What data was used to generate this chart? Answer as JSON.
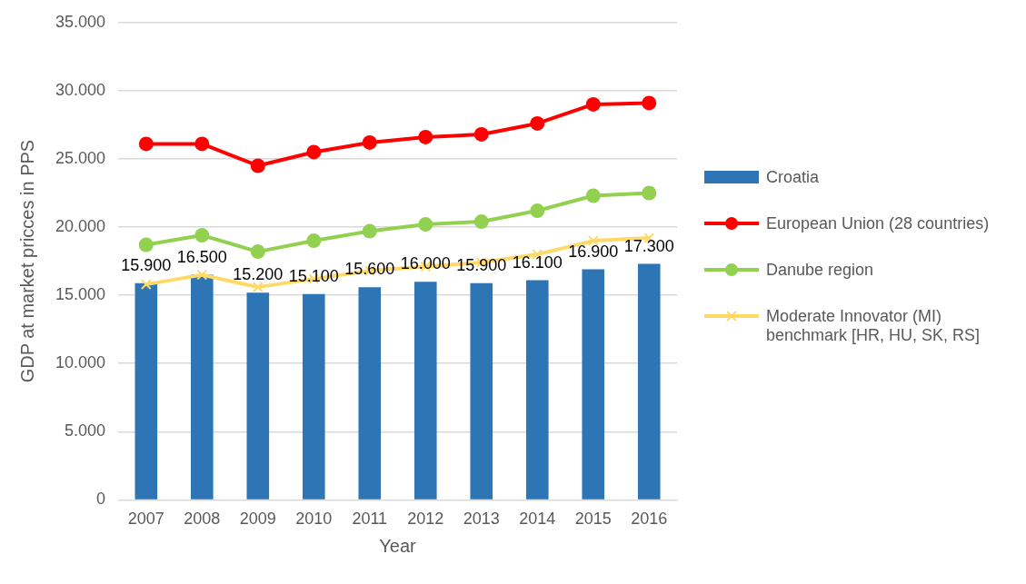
{
  "chart_data": {
    "type": "bar",
    "xlabel": "Year",
    "ylabel": "GDP at market pricces in PPS",
    "categories": [
      "2007",
      "2008",
      "2009",
      "2010",
      "2011",
      "2012",
      "2013",
      "2014",
      "2015",
      "2016"
    ],
    "series": [
      {
        "name": "Croatia",
        "color": "#2e75b6",
        "values": [
          15900,
          16500,
          15200,
          15100,
          15600,
          16000,
          15900,
          16100,
          16900,
          17300
        ],
        "value_labels": [
          "15.900",
          "16.500",
          "15.200",
          "15.100",
          "15.600",
          "16.000",
          "15.900",
          "16.100",
          "16.900",
          "17.300"
        ]
      },
      {
        "name": "European Union (28 countries)",
        "type": "line",
        "color": "#ff0000",
        "marker": "circle",
        "values": [
          26100,
          26100,
          24500,
          25500,
          26200,
          26600,
          26800,
          27600,
          29000,
          29100
        ]
      },
      {
        "name": "Danube region",
        "type": "line",
        "color": "#92d050",
        "marker": "circle",
        "values": [
          18700,
          19400,
          18200,
          19000,
          19700,
          20200,
          20400,
          21200,
          22300,
          22500
        ]
      },
      {
        "name": "Moderate Innovator (MI) benchmark [HR, HU, SK, RS]",
        "type": "line",
        "color": "#ffd966",
        "marker": "cross",
        "values": [
          15800,
          16500,
          15600,
          16200,
          16800,
          17100,
          17400,
          18000,
          19000,
          19200
        ]
      }
    ],
    "ylim": [
      0,
      35000
    ],
    "yticks": [
      0,
      {
        "value": 5000,
        "label": "5.000"
      },
      {
        "value": 10000,
        "label": "10.000"
      },
      {
        "value": 15000,
        "label": "15.000"
      },
      {
        "value": 20000,
        "label": "20.000"
      },
      {
        "value": 25000,
        "label": "25.000"
      },
      {
        "value": 30000,
        "label": "30.000"
      },
      {
        "value": 35000,
        "label": "35.000"
      }
    ],
    "grid": "y",
    "legend": "right"
  }
}
